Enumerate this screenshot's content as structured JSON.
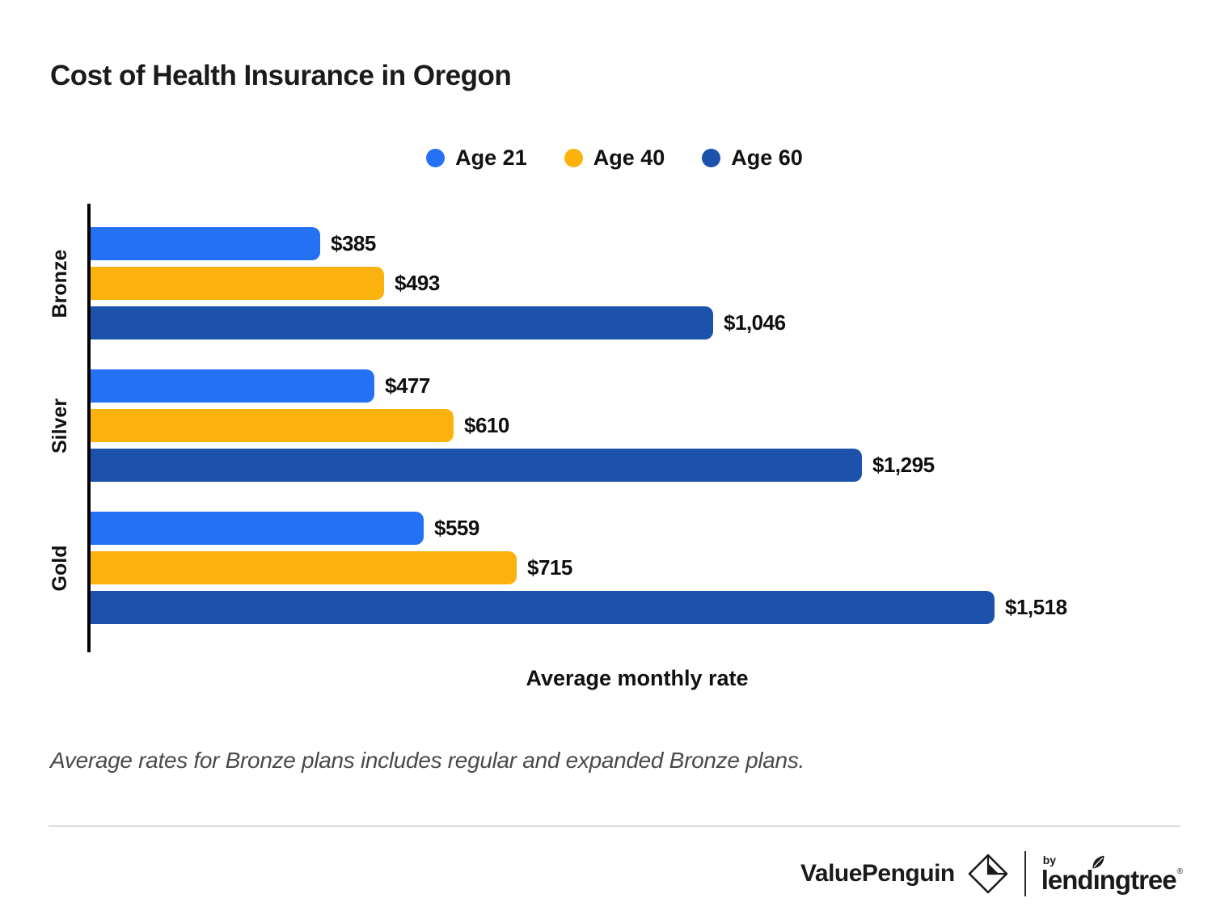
{
  "title": "Cost of Health Insurance in Oregon",
  "legend": {
    "items": [
      {
        "label": "Age 21",
        "color": "#2471F3"
      },
      {
        "label": "Age 40",
        "color": "#FBB20D"
      },
      {
        "label": "Age 60",
        "color": "#1C52AC"
      }
    ]
  },
  "chart_data": {
    "type": "bar",
    "orientation": "horizontal",
    "title": "Cost of Health Insurance in Oregon",
    "categories": [
      "Bronze",
      "Silver",
      "Gold"
    ],
    "series": [
      {
        "name": "Age 21",
        "color": "#2471F3",
        "values": [
          385,
          477,
          559
        ],
        "labels": [
          "$385",
          "$477",
          "$559"
        ]
      },
      {
        "name": "Age 40",
        "color": "#FBB20D",
        "values": [
          493,
          610,
          715
        ],
        "labels": [
          "$493",
          "$610",
          "$715"
        ]
      },
      {
        "name": "Age 60",
        "color": "#1C52AC",
        "values": [
          1046,
          1295,
          1518
        ],
        "labels": [
          "$1,046",
          "$1,295",
          "$1,518"
        ]
      }
    ],
    "xlabel": "Average monthly rate",
    "ylabel": "",
    "xlim": [
      0,
      1518
    ],
    "grid": false,
    "legend_position": "top-center",
    "value_labels_shown": true
  },
  "footnote": "Average rates for Bronze plans includes regular and expanded Bronze plans.",
  "footer": {
    "brand": "ValuePenguin",
    "by_label": "by",
    "partner": "lendingtree",
    "trademark": "®"
  },
  "colors": {
    "axis": "#000000",
    "text": "#1B1B1B",
    "footnote_text": "#4A4A4A",
    "divider": "#DDDDDD"
  }
}
